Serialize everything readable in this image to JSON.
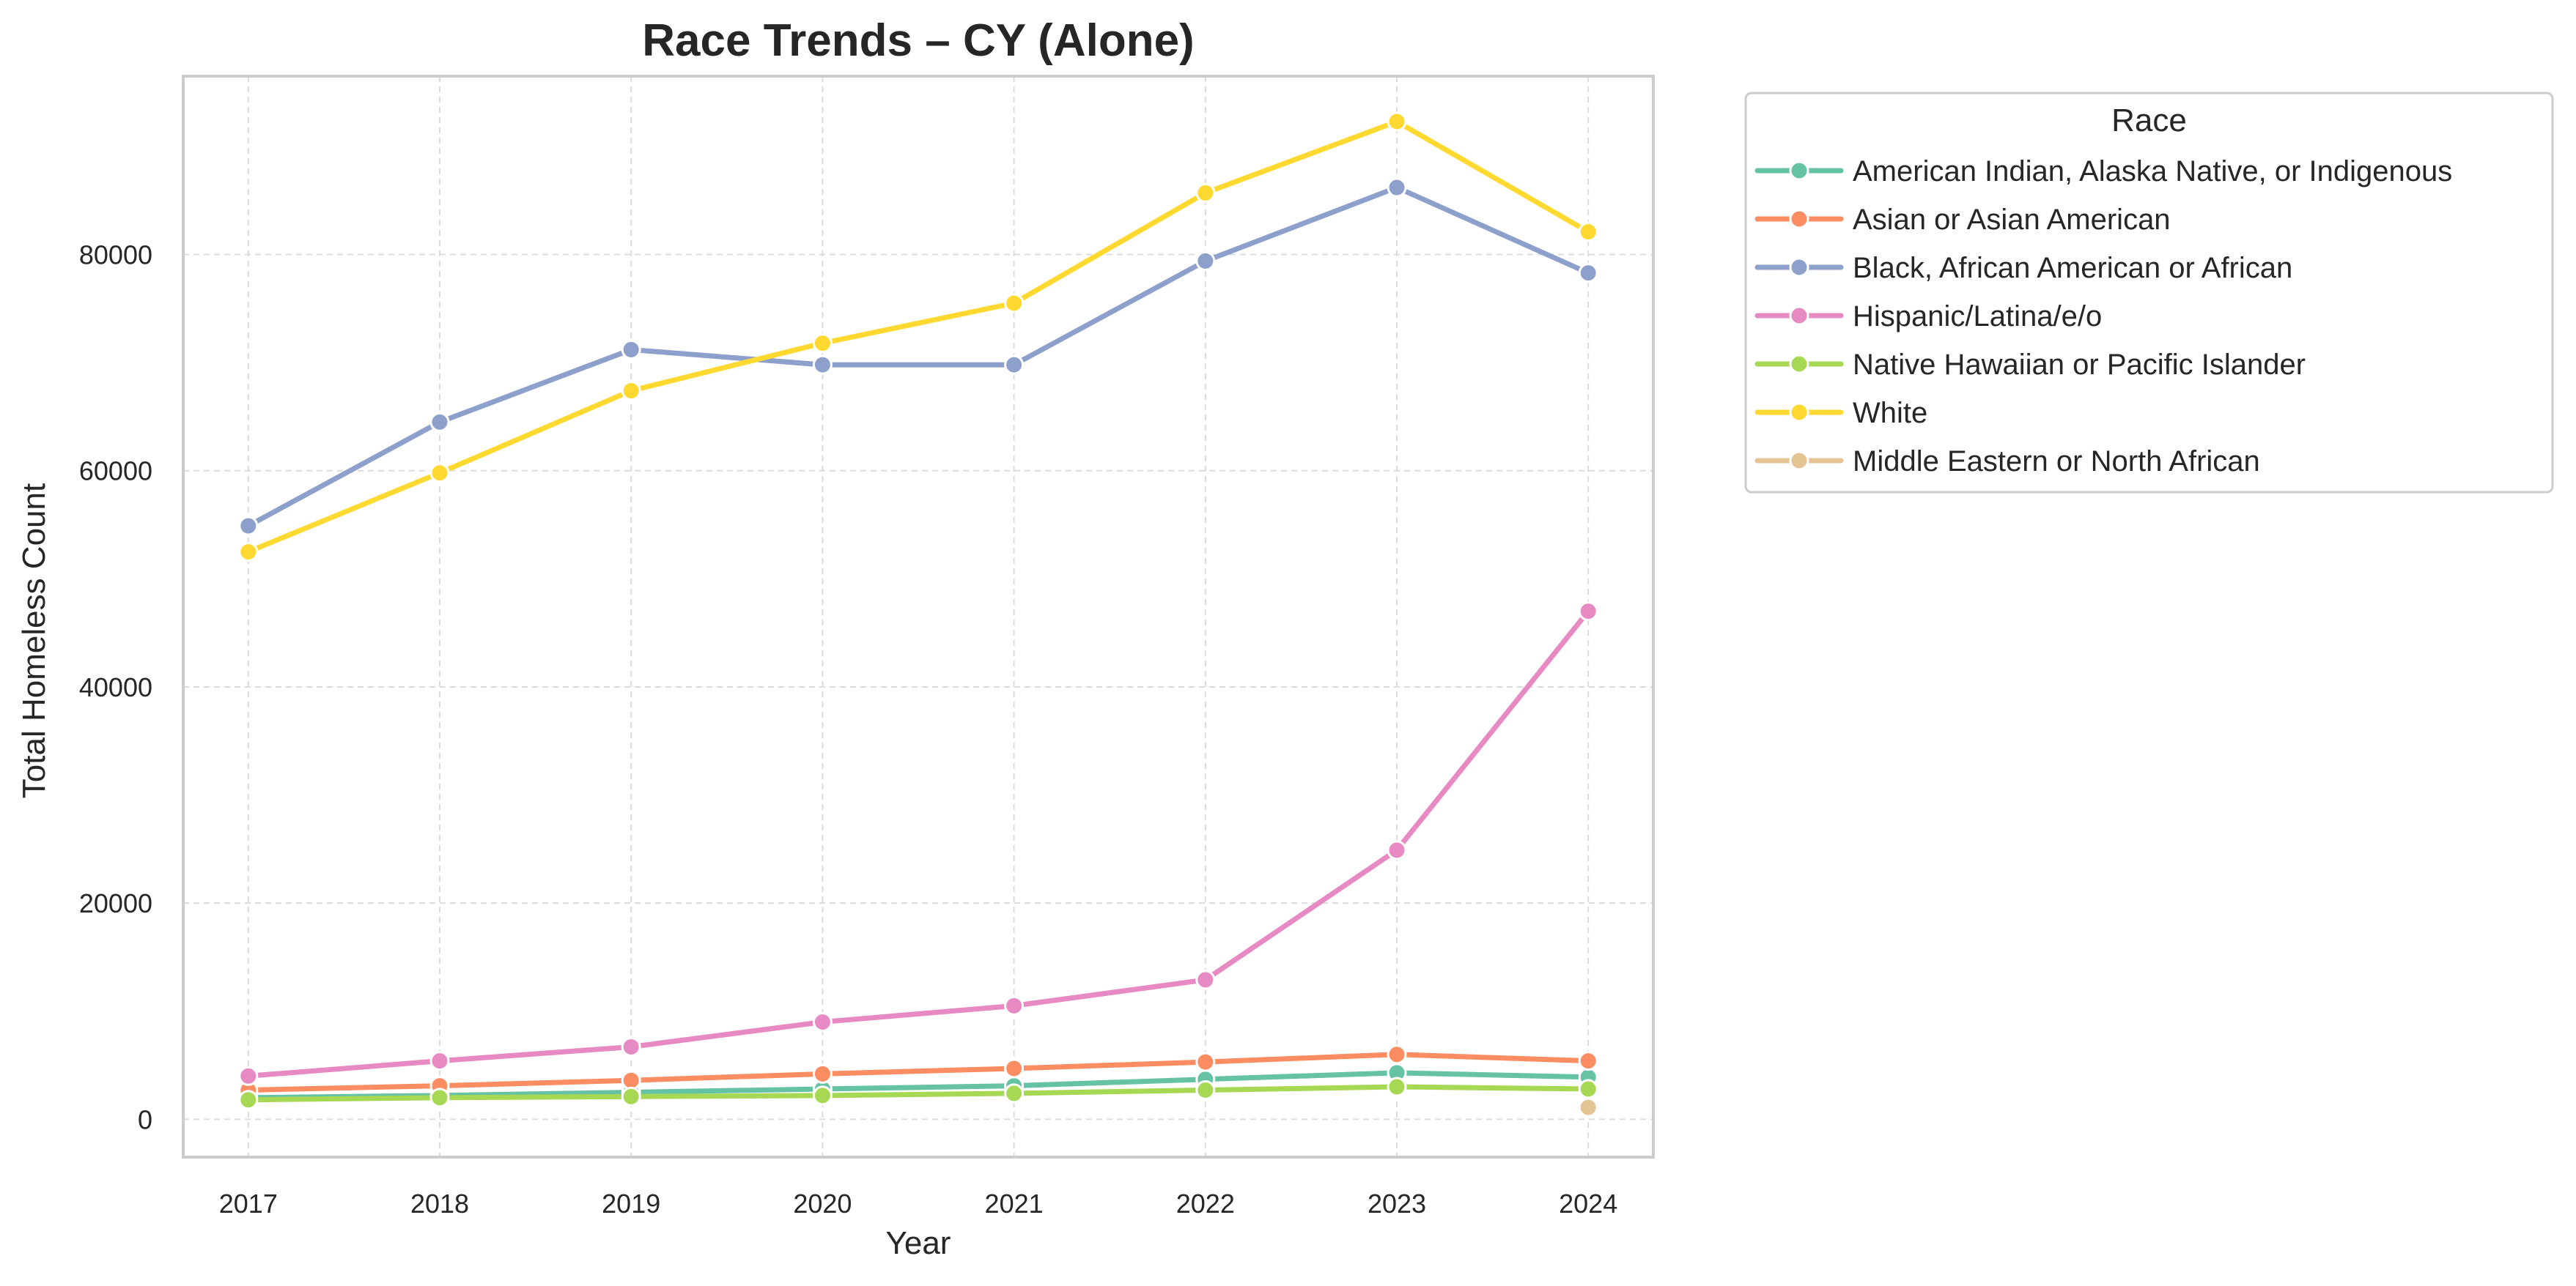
{
  "chart_data": {
    "type": "line",
    "title": "Race Trends – CY (Alone)",
    "xlabel": "Year",
    "ylabel": "Total Homeless Count",
    "x": [
      2017,
      2018,
      2019,
      2020,
      2021,
      2022,
      2023,
      2024
    ],
    "xlim": [
      2016.66,
      2024.34
    ],
    "ylim": [
      -3500,
      96500
    ],
    "yticks": [
      0,
      20000,
      40000,
      60000,
      80000
    ],
    "grid": true,
    "legend": {
      "title": "Race",
      "placement": "outside-top-right"
    },
    "series": [
      {
        "name": "American Indian, Alaska Native, or Indigenous",
        "color": "#66c2a5",
        "values": [
          2000,
          2200,
          2500,
          2800,
          3100,
          3700,
          4300,
          3900
        ]
      },
      {
        "name": "Asian or Asian American",
        "color": "#fc8d62",
        "values": [
          2700,
          3100,
          3600,
          4200,
          4700,
          5300,
          6000,
          5400
        ]
      },
      {
        "name": "Black, African American or African",
        "color": "#8da0cb",
        "values": [
          54900,
          64500,
          71200,
          69800,
          69800,
          79400,
          86200,
          78300
        ]
      },
      {
        "name": "Hispanic/Latina/e/o",
        "color": "#e78ac3",
        "values": [
          4000,
          5400,
          6700,
          9000,
          10500,
          12900,
          24900,
          47000
        ]
      },
      {
        "name": "Native Hawaiian or Pacific Islander",
        "color": "#a6d854",
        "values": [
          1800,
          2000,
          2100,
          2200,
          2400,
          2700,
          3000,
          2800
        ]
      },
      {
        "name": "White",
        "color": "#ffd92f",
        "values": [
          52500,
          59800,
          67400,
          71800,
          75500,
          85700,
          92300,
          82100
        ]
      },
      {
        "name": "Middle Eastern or North African",
        "color": "#e5c494",
        "values": [
          null,
          null,
          null,
          null,
          null,
          null,
          null,
          1100
        ]
      }
    ]
  }
}
